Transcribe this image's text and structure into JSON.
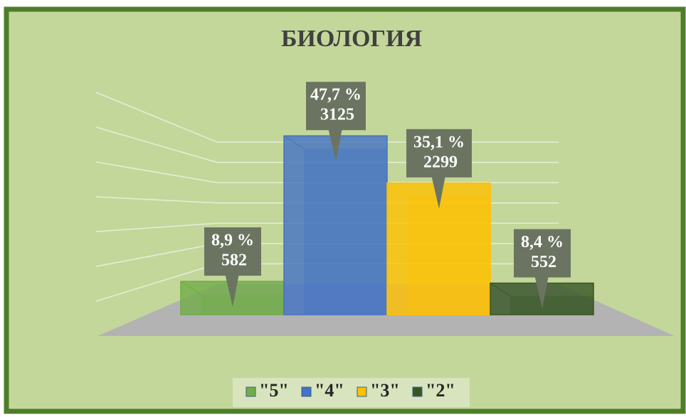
{
  "chart_data": {
    "type": "bar3d",
    "title": "БИОЛОГИЯ",
    "categories": [
      "\"5\"",
      "\"4\"",
      "\"3\"",
      "\"2\""
    ],
    "values": [
      582,
      3125,
      2299,
      552
    ],
    "percent_labels": [
      "8,9 %",
      "47,7 %",
      "35,1 %",
      "8,4 %"
    ],
    "colors": [
      "#70ad47",
      "#4472c4",
      "#ffc000",
      "#375623"
    ],
    "ylim": [
      0,
      3500
    ],
    "yticks": [
      0,
      500,
      1000,
      1500,
      2000,
      2500,
      3000,
      3500
    ],
    "grid": true,
    "legend": "bottom"
  }
}
